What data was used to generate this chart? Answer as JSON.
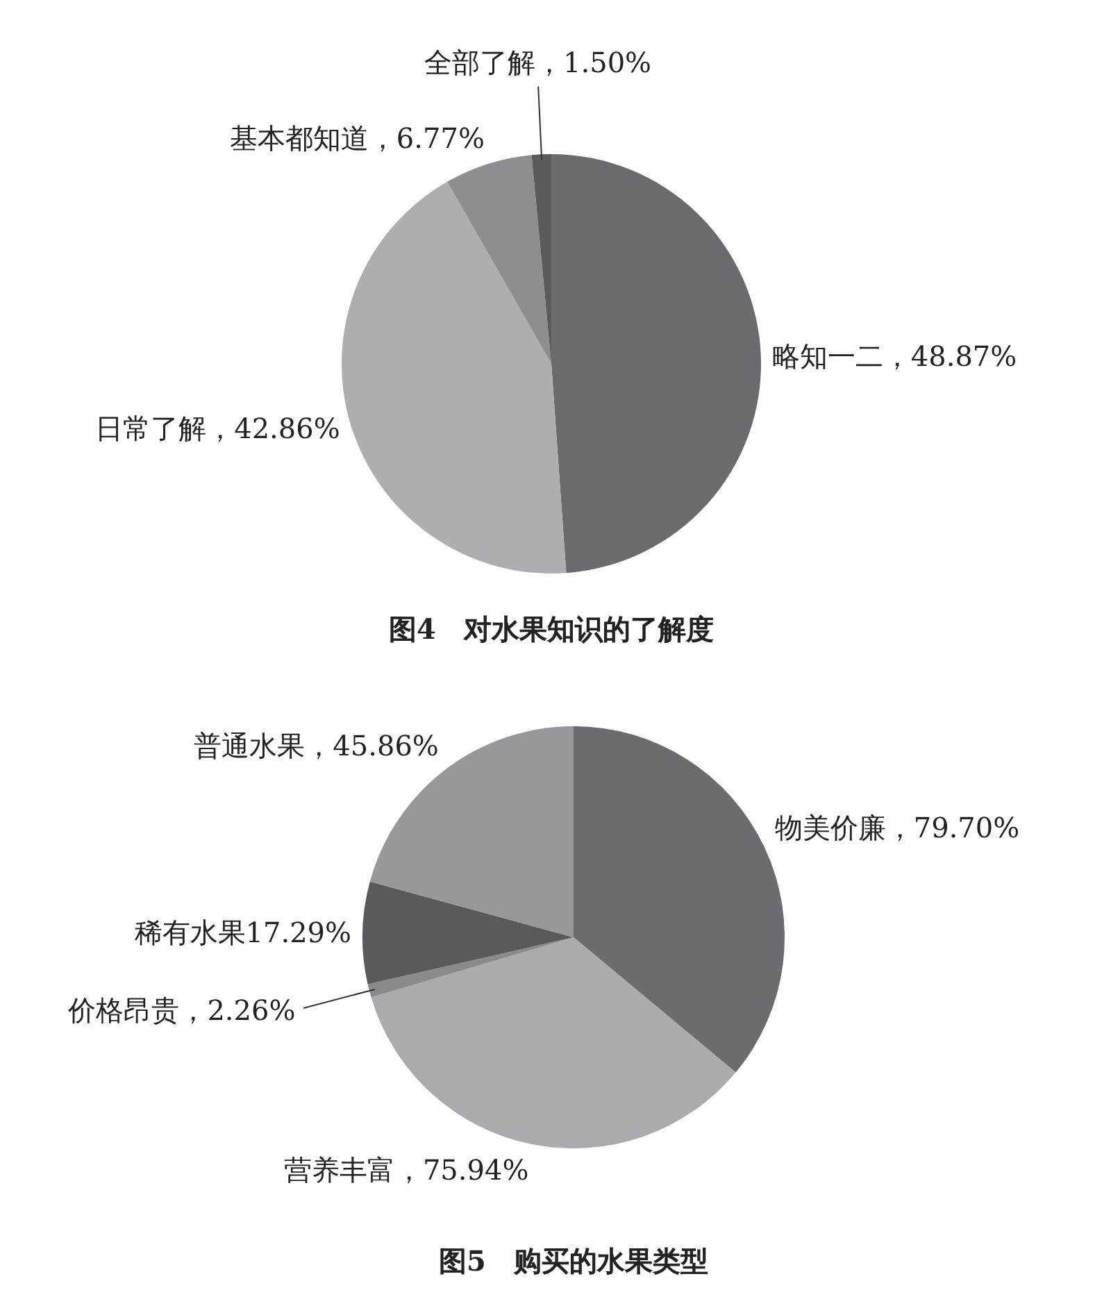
{
  "chart_data": [
    {
      "type": "pie",
      "title": "图4　对水果知识的了解度",
      "categories": [
        "略知一二",
        "日常了解",
        "基本都知道",
        "全部了解"
      ],
      "values": [
        48.87,
        42.86,
        6.77,
        1.5
      ],
      "colors": [
        "#6b6b6f",
        "#aeaeb2",
        "#8e8e92",
        "#5a5a5e"
      ],
      "value_labels": [
        "，48.87%",
        "，42.86%",
        "，6.77%",
        "，1.50%"
      ]
    },
    {
      "type": "pie",
      "title": "图5　购买的水果类型",
      "categories": [
        "物美价廉",
        "营养丰富",
        "价格昂贵",
        "稀有水果",
        "普通水果"
      ],
      "values": [
        79.7,
        75.94,
        2.26,
        17.29,
        45.86
      ],
      "colors": [
        "#6b6b70",
        "#ababaf",
        "#8a8a8e",
        "#5a5a5e",
        "#98989c"
      ],
      "value_labels": [
        "，79.70%",
        "，75.94%",
        "，2.26%",
        "17.29%",
        "，45.86%"
      ]
    }
  ]
}
